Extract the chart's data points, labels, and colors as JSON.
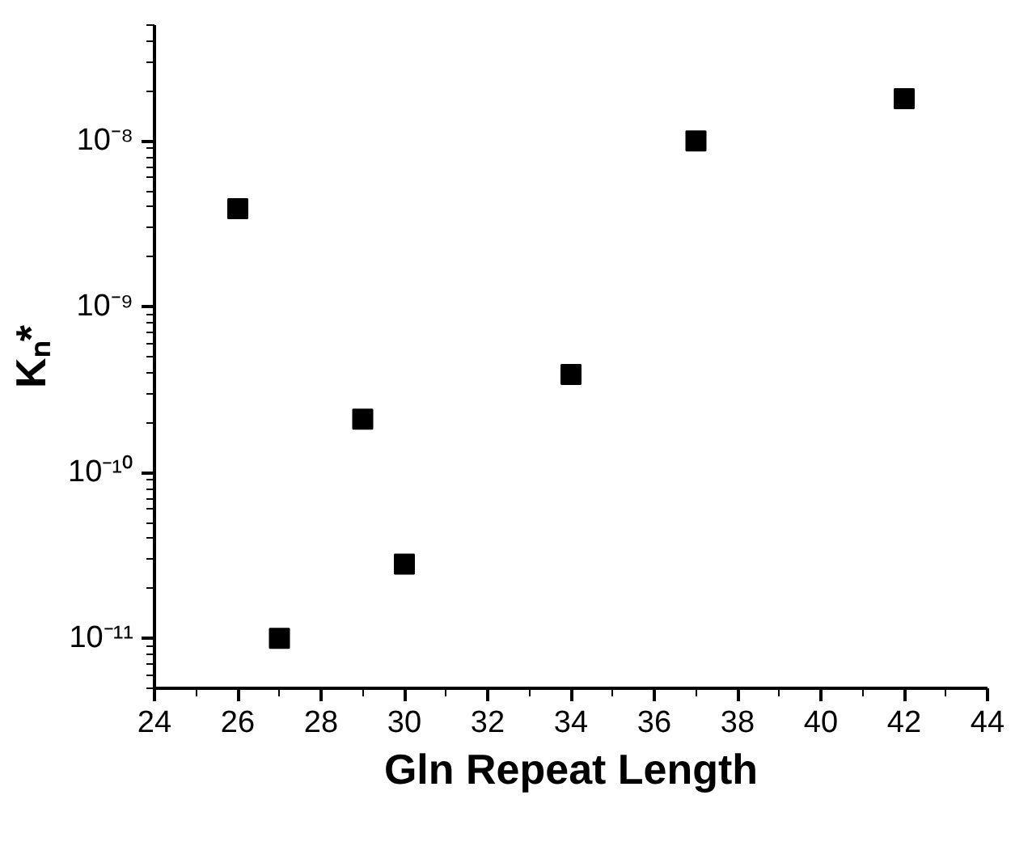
{
  "chart_data": {
    "type": "scatter",
    "xlabel": "Gln Repeat Length",
    "ylabel": "Kₙ*",
    "x": [
      26,
      27,
      29,
      30,
      34,
      37,
      42
    ],
    "series": [
      {
        "color": "#000000",
        "values": [
          3.9e-09,
          1e-11,
          2.1e-10,
          2.8e-11,
          3.9e-10,
          1e-08,
          1.8e-08
        ]
      }
    ],
    "marker": "square",
    "log": true,
    "grid": false,
    "xlim": [
      24,
      44
    ],
    "xticks": [
      24,
      26,
      28,
      30,
      32,
      34,
      36,
      38,
      40,
      42,
      44
    ],
    "ylim": [
      5e-12,
      5e-08
    ],
    "yticks": [
      {
        "value": 1e-11,
        "label": "10⁻¹¹"
      },
      {
        "value": 1e-10,
        "label": "10⁻¹⁰"
      },
      {
        "value": 1e-09,
        "label": "10⁻⁹"
      },
      {
        "value": 1e-08,
        "label": "10⁻⁸"
      }
    ]
  }
}
